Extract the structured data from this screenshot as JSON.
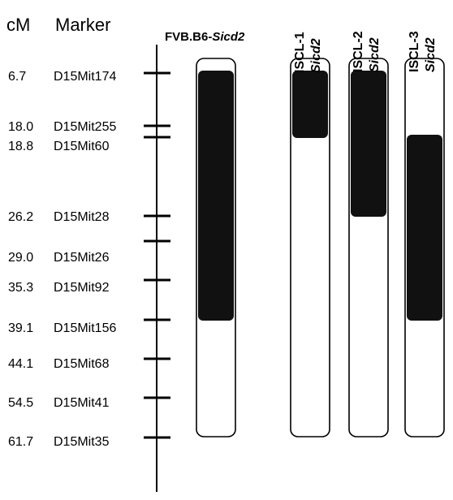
{
  "headers": {
    "cm": "cM",
    "marker": "Marker",
    "strain_prefix": "FVB.B6-",
    "strain_gene": "Sicd2"
  },
  "markers": [
    {
      "cm": "6.7",
      "name": "D15Mit174"
    },
    {
      "cm": "18.0",
      "name": "D15Mit255"
    },
    {
      "cm": "18.8",
      "name": "D15Mit60"
    },
    {
      "cm": "26.2",
      "name": "D15Mit28"
    },
    {
      "cm": "29.0",
      "name": "D15Mit26"
    },
    {
      "cm": "35.3",
      "name": "D15Mit92"
    },
    {
      "cm": "39.1",
      "name": "D15Mit156"
    },
    {
      "cm": "44.1",
      "name": "D15Mit68"
    },
    {
      "cm": "54.5",
      "name": "D15Mit41"
    },
    {
      "cm": "61.7",
      "name": "D15Mit35"
    }
  ],
  "strains": [
    {
      "line1": "",
      "line2": "",
      "congenic_from": "D15Mit174",
      "congenic_to": "D15Mit156"
    },
    {
      "line1": "ISCL-1",
      "line2": "Sicd2",
      "congenic_from": "D15Mit174",
      "congenic_to": "D15Mit60"
    },
    {
      "line1": "ISCL-2",
      "line2": "Sicd2",
      "congenic_from": "D15Mit174",
      "congenic_to": "D15Mit28"
    },
    {
      "line1": "ISCL-3",
      "line2": "Sicd2",
      "congenic_from": "D15Mit60",
      "congenic_to": "D15Mit156"
    }
  ],
  "colors": {
    "congenic": "#111111",
    "background": "#ffffff",
    "line": "#000000"
  }
}
